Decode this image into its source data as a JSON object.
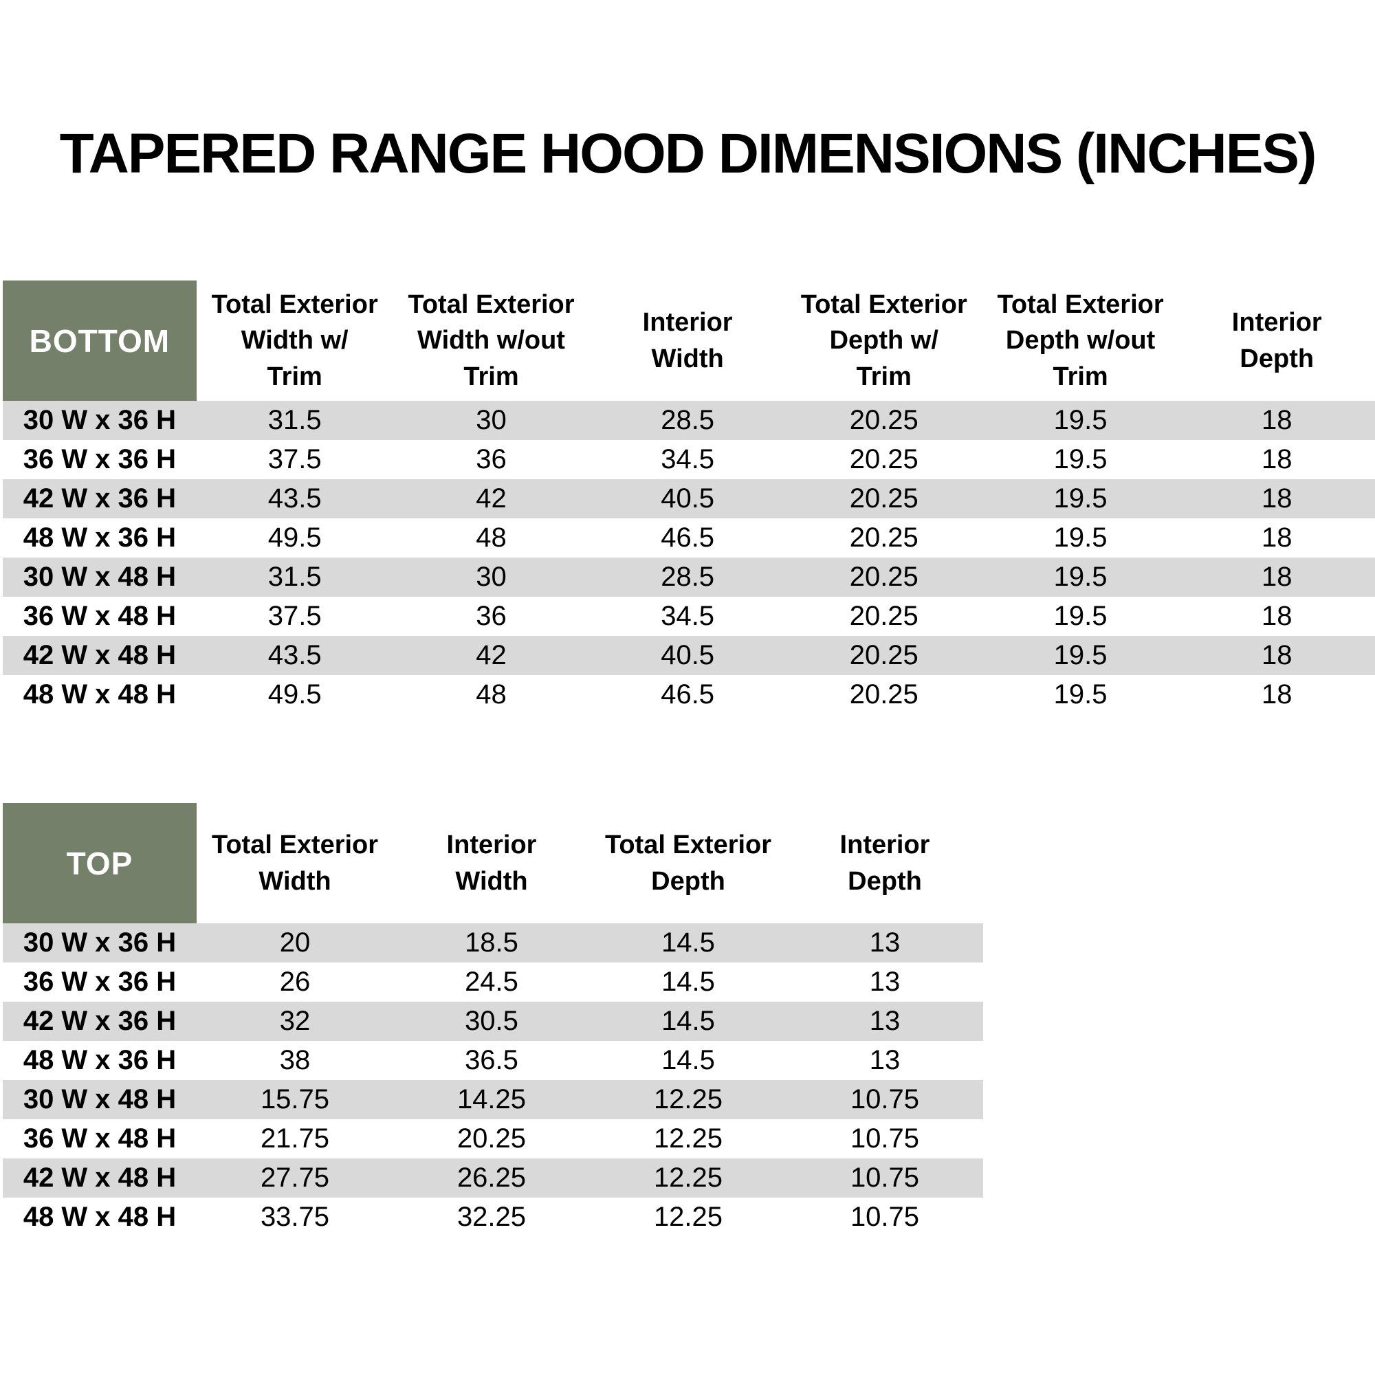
{
  "page_title": "TAPERED RANGE HOOD DIMENSIONS (INCHES)",
  "colors": {
    "corner_cell_green": "#75806B",
    "stripe_gray": "#D9D9D9",
    "background": "#FFFFFF",
    "text": "#000000",
    "corner_text": "#FFFFFF"
  },
  "bottom_table": {
    "corner_label": "BOTTOM",
    "column_headers": [
      "Total Exterior\nWidth w/\nTrim",
      "Total Exterior\nWidth w/out\nTrim",
      "Interior\nWidth",
      "Total Exterior\nDepth w/\nTrim",
      "Total Exterior\nDepth w/out\nTrim",
      "Interior\nDepth"
    ],
    "rows": [
      {
        "label": "30 W x 36 H",
        "values": [
          "31.5",
          "30",
          "28.5",
          "20.25",
          "19.5",
          "18"
        ]
      },
      {
        "label": "36 W x 36 H",
        "values": [
          "37.5",
          "36",
          "34.5",
          "20.25",
          "19.5",
          "18"
        ]
      },
      {
        "label": "42 W x 36 H",
        "values": [
          "43.5",
          "42",
          "40.5",
          "20.25",
          "19.5",
          "18"
        ]
      },
      {
        "label": "48 W x 36 H",
        "values": [
          "49.5",
          "48",
          "46.5",
          "20.25",
          "19.5",
          "18"
        ]
      },
      {
        "label": "30 W x 48 H",
        "values": [
          "31.5",
          "30",
          "28.5",
          "20.25",
          "19.5",
          "18"
        ]
      },
      {
        "label": "36 W x 48 H",
        "values": [
          "37.5",
          "36",
          "34.5",
          "20.25",
          "19.5",
          "18"
        ]
      },
      {
        "label": "42 W x 48 H",
        "values": [
          "43.5",
          "42",
          "40.5",
          "20.25",
          "19.5",
          "18"
        ]
      },
      {
        "label": "48 W x 48 H",
        "values": [
          "49.5",
          "48",
          "46.5",
          "20.25",
          "19.5",
          "18"
        ]
      }
    ]
  },
  "top_table": {
    "corner_label": "TOP",
    "column_headers": [
      "Total Exterior\nWidth",
      "Interior\nWidth",
      "Total Exterior\nDepth",
      "Interior\nDepth"
    ],
    "rows": [
      {
        "label": "30 W x 36 H",
        "values": [
          "20",
          "18.5",
          "14.5",
          "13"
        ]
      },
      {
        "label": "36 W x 36 H",
        "values": [
          "26",
          "24.5",
          "14.5",
          "13"
        ]
      },
      {
        "label": "42 W x 36 H",
        "values": [
          "32",
          "30.5",
          "14.5",
          "13"
        ]
      },
      {
        "label": "48 W x 36 H",
        "values": [
          "38",
          "36.5",
          "14.5",
          "13"
        ]
      },
      {
        "label": "30 W x 48 H",
        "values": [
          "15.75",
          "14.25",
          "12.25",
          "10.75"
        ]
      },
      {
        "label": "36 W x 48 H",
        "values": [
          "21.75",
          "20.25",
          "12.25",
          "10.75"
        ]
      },
      {
        "label": "42 W x 48 H",
        "values": [
          "27.75",
          "26.25",
          "12.25",
          "10.75"
        ]
      },
      {
        "label": "48 W x 48 H",
        "values": [
          "33.75",
          "32.25",
          "12.25",
          "10.75"
        ]
      }
    ]
  }
}
